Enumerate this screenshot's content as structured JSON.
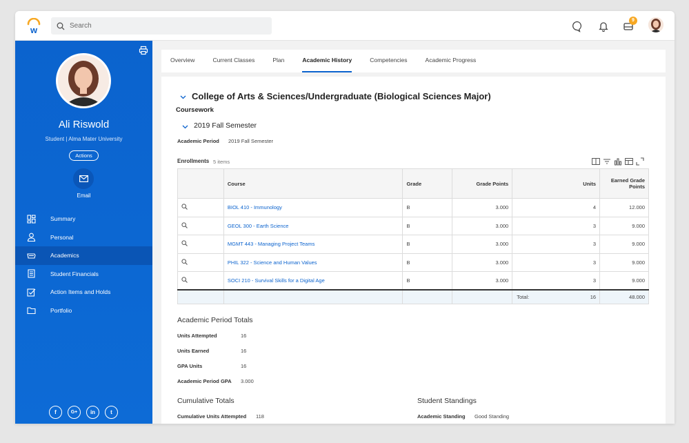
{
  "topbar": {
    "search_placeholder": "Search",
    "inbox_badge": "9"
  },
  "sidebar": {
    "name": "Ali Riswold",
    "subtitle": "Student | Alma Mater University",
    "actions_label": "Actions",
    "email_label": "Email",
    "nav": [
      {
        "label": "Summary",
        "icon": "dashboard-icon"
      },
      {
        "label": "Personal",
        "icon": "person-icon"
      },
      {
        "label": "Academics",
        "icon": "graduation-cap-icon"
      },
      {
        "label": "Student Financials",
        "icon": "document-icon"
      },
      {
        "label": "Action Items and Holds",
        "icon": "checklist-icon"
      },
      {
        "label": "Portfolio",
        "icon": "folder-icon"
      }
    ],
    "socials": [
      "f",
      "G+",
      "in",
      "t"
    ]
  },
  "tabs": [
    "Overview",
    "Current Classes",
    "Plan",
    "Academic History",
    "Competencies",
    "Academic Progress"
  ],
  "main": {
    "heading": "College of Arts & Sciences/Undergraduate (Biological Sciences Major)",
    "coursework": "Coursework",
    "semester": "2019 Fall Semester",
    "academic_period_label": "Academic Period",
    "academic_period_value": "2019 Fall Semester",
    "enrollments_label": "Enrollments",
    "enrollments_count": "5 items",
    "table": {
      "headers": [
        "Course",
        "Grade",
        "Grade Points",
        "Units",
        "Earned Grade Points"
      ],
      "rows": [
        {
          "course": "BIOL 410 - Immunology",
          "grade": "B",
          "grade_points": "3.000",
          "units": "4",
          "earned": "12.000"
        },
        {
          "course": "GEOL 300 - Earth Science",
          "grade": "B",
          "grade_points": "3.000",
          "units": "3",
          "earned": "9.000"
        },
        {
          "course": "MGMT 443 - Managing Project Teams",
          "grade": "B",
          "grade_points": "3.000",
          "units": "3",
          "earned": "9.000"
        },
        {
          "course": "PHIL 322 - Science and Human Values",
          "grade": "B",
          "grade_points": "3.000",
          "units": "3",
          "earned": "9.000"
        },
        {
          "course": "SOCI 210 - Survival Skills for a Digital Age",
          "grade": "B",
          "grade_points": "3.000",
          "units": "3",
          "earned": "9.000"
        }
      ],
      "total_label": "Total:",
      "total_units": "16",
      "total_earned": "48.000"
    },
    "period_totals": {
      "title": "Academic Period Totals",
      "items": [
        {
          "label": "Units Attempted",
          "value": "16"
        },
        {
          "label": "Units Earned",
          "value": "16"
        },
        {
          "label": "GPA Units",
          "value": "16"
        },
        {
          "label": "Academic Period GPA",
          "value": "3.000"
        }
      ]
    },
    "cumulative": {
      "title": "Cumulative Totals",
      "label": "Cumulative Units Attempted",
      "value": "118"
    },
    "standings": {
      "title": "Student Standings",
      "label": "Academic Standing",
      "value": "Good Standing"
    }
  },
  "colors": {
    "primary": "#0b63ce",
    "badge": "#f7a823"
  }
}
